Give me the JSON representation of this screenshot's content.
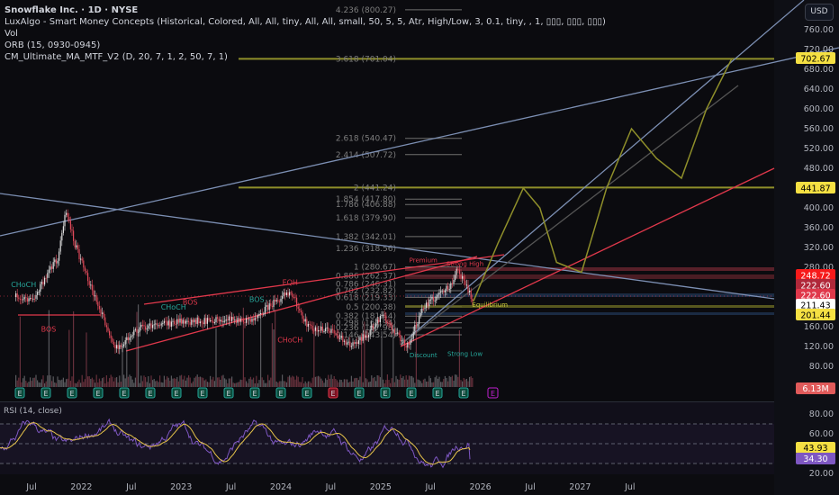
{
  "header": {
    "title": "Snowflake Inc. · 1D · NYSE",
    "indicators": [
      "LuxAlgo - Smart Money Concepts (Historical, Colored, All, All, tiny, All, All, small, 50, 5, 5, Atr, High/Low, 3, 0.1, tiny, , 1, ▯▯▯, ▯▯▯, ▯▯▯)",
      "Vol",
      "ORB (15, 0930-0945)",
      "CM_Ultimate_MA_MTF_V2 (D, 20, 7, 1, 2, 50, 7, 1)"
    ],
    "currency_button": "USD"
  },
  "colors": {
    "background": "#0c0c10",
    "up": "#e0e0e0",
    "down": "#e04a5a",
    "trend_blue": "#7c8fb3",
    "trend_red": "#e0384b",
    "projection": "#8f8f2a",
    "fib_line": "#8a8a8a",
    "rsi_line": "#7e57c2",
    "rsi_ma": "#e6c34a",
    "smc_green": "#26a69a",
    "smc_red": "#e0384b"
  },
  "chart_data": {
    "type": "candlestick",
    "symbol": "Snowflake Inc.",
    "interval": "1D",
    "price_axis": {
      "ticks": [
        "760.00",
        "720.00",
        "680.00",
        "640.00",
        "600.00",
        "560.00",
        "520.00",
        "480.00",
        "400.00",
        "360.00",
        "320.00",
        "280.00",
        "160.00",
        "120.00",
        "80.00"
      ],
      "range": [
        80,
        760
      ]
    },
    "price_labels": [
      {
        "value": "702.67",
        "color": "#f5e043",
        "text": "#000"
      },
      {
        "value": "441.87",
        "color": "#f5e043",
        "text": "#000"
      },
      {
        "value": "248.72",
        "color": "#f71a1a",
        "text": "#fff"
      },
      {
        "value": "222.60",
        "color": "#b0283a",
        "text": "#fff"
      },
      {
        "value": "222.60",
        "color": "#e0384b",
        "text": "#fff"
      },
      {
        "value": "211.43",
        "color": "#ffffff",
        "text": "#000"
      },
      {
        "value": "201.44",
        "color": "#f5e043",
        "text": "#000"
      }
    ],
    "volume_label": "6.13M",
    "time_axis": [
      "Jul",
      "2022",
      "Jul",
      "2023",
      "Jul",
      "2024",
      "Jul",
      "2025",
      "Jul",
      "2026",
      "Jul",
      "2027",
      "Jul"
    ],
    "price_path": [
      [
        "2021-05",
        220
      ],
      [
        "2021-07",
        215
      ],
      [
        "2021-10",
        298
      ],
      [
        "2021-11",
        400
      ],
      [
        "2021-12",
        330
      ],
      [
        "2022-03",
        200
      ],
      [
        "2022-05",
        115
      ],
      [
        "2022-08",
        160
      ],
      [
        "2023-01",
        170
      ],
      [
        "2023-06",
        175
      ],
      [
        "2023-09",
        170
      ],
      [
        "2024-02",
        233
      ],
      [
        "2024-04",
        160
      ],
      [
        "2024-07",
        150
      ],
      [
        "2024-09",
        125
      ],
      [
        "2024-11",
        140
      ],
      [
        "2025-01",
        185
      ],
      [
        "2025-04",
        120
      ],
      [
        "2025-06",
        200
      ],
      [
        "2025-09",
        240
      ],
      [
        "2025-10",
        275
      ],
      [
        "2025-11",
        245
      ],
      [
        "2025-12",
        211
      ]
    ],
    "projection_path": [
      [
        "2025-12",
        211
      ],
      [
        "2026-03",
        330
      ],
      [
        "2026-06",
        440
      ],
      [
        "2026-08",
        400
      ],
      [
        "2026-10",
        290
      ],
      [
        "2027-01",
        270
      ],
      [
        "2027-04",
        440
      ],
      [
        "2027-07",
        560
      ],
      [
        "2027-10",
        500
      ],
      [
        "2028-01",
        460
      ],
      [
        "2028-04",
        600
      ],
      [
        "2028-07",
        700
      ]
    ],
    "fib_levels": [
      {
        "ratio": "4.236",
        "price": 800.27
      },
      {
        "ratio": "3.618",
        "price": 701.04
      },
      {
        "ratio": "2.618",
        "price": 540.47
      },
      {
        "ratio": "2.414",
        "price": 507.72
      },
      {
        "ratio": "2",
        "price": 441.24
      },
      {
        "ratio": "1.854",
        "price": 417.8
      },
      {
        "ratio": "1.786",
        "price": 406.88
      },
      {
        "ratio": "1.618",
        "price": 379.9
      },
      {
        "ratio": "1.382",
        "price": 342.01
      },
      {
        "ratio": "1.236",
        "price": 318.56
      },
      {
        "ratio": "1",
        "price": 280.67
      },
      {
        "ratio": "0.886",
        "price": 262.37
      },
      {
        "ratio": "0.786",
        "price": 246.31
      },
      {
        "ratio": "0.702",
        "price": 232.82
      },
      {
        "ratio": "0.618",
        "price": 219.33
      },
      {
        "ratio": "0.5",
        "price": 200.38
      },
      {
        "ratio": "0.382",
        "price": 181.44
      },
      {
        "ratio": "0.298",
        "price": 167.94
      },
      {
        "ratio": "0.236",
        "price": 157.98
      },
      {
        "ratio": "0.146",
        "price": 143.54
      }
    ],
    "smc_labels": [
      {
        "text": "BOS",
        "date": "2021-09",
        "price": 150,
        "color": "#e0384b"
      },
      {
        "text": "CHoCH",
        "date": "2021-06",
        "price": 240,
        "color": "#26a69a"
      },
      {
        "text": "BOS",
        "date": "2023-02",
        "price": 205,
        "color": "#e0384b"
      },
      {
        "text": "CHoCH",
        "date": "2022-12",
        "price": 195,
        "color": "#26a69a"
      },
      {
        "text": "BOS",
        "date": "2023-10",
        "price": 210,
        "color": "#26a69a"
      },
      {
        "text": "EQH",
        "date": "2024-02",
        "price": 245,
        "color": "#e0384b"
      },
      {
        "text": "CHoCH",
        "date": "2024-02",
        "price": 128,
        "color": "#e0384b"
      },
      {
        "text": "Premium",
        "date": "2025-06",
        "price": 290,
        "color": "#e0384b"
      },
      {
        "text": "Strong High",
        "date": "2025-11",
        "price": 283,
        "color": "#e0384b"
      },
      {
        "text": "Equilibrium",
        "date": "2026-02",
        "price": 200,
        "color": "#c9c93a"
      },
      {
        "text": "Discount",
        "date": "2025-06",
        "price": 98,
        "color": "#26a69a"
      },
      {
        "text": "Strong Low",
        "date": "2025-11",
        "price": 101,
        "color": "#26a69a"
      }
    ]
  },
  "rsi": {
    "title": "RSI (14, close)",
    "axis": [
      "80.00",
      "60.00",
      "20.00"
    ],
    "bands": [
      70,
      50,
      30
    ],
    "value": "34.30",
    "ma_value": "43.93",
    "value_color": "#7e57c2",
    "ma_color": "#f5e043"
  }
}
